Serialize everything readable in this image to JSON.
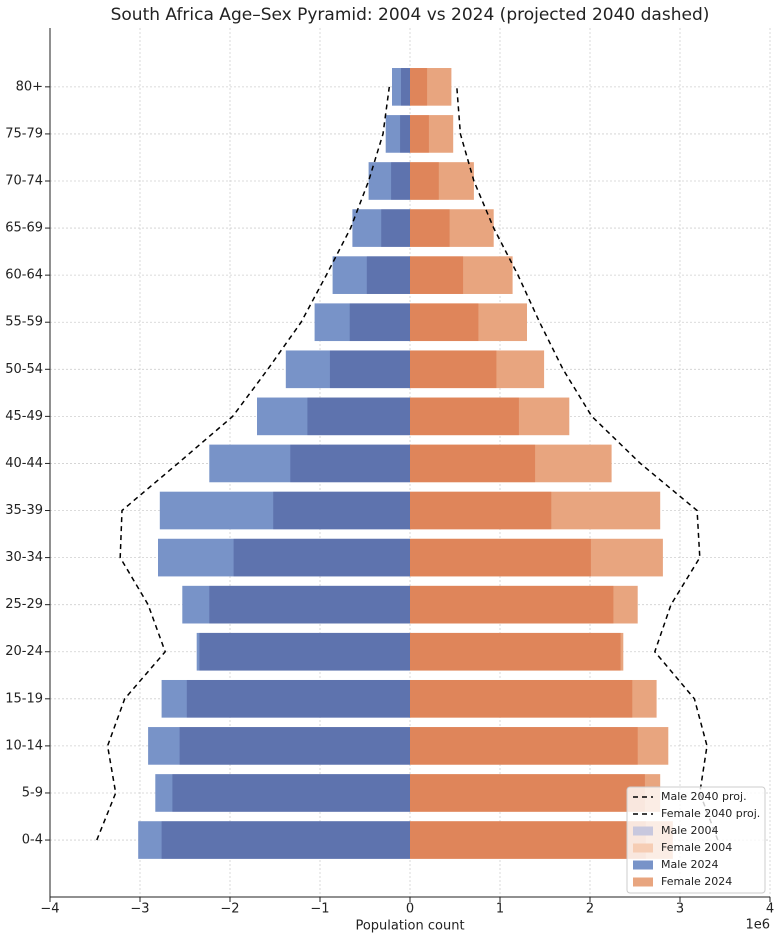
{
  "chart_data": {
    "type": "bar",
    "orientation": "horizontal",
    "title": "South Africa Age–Sex Pyramid: 2004 vs 2024 (projected 2040 dashed)",
    "x_label": "Population count",
    "x_offset_label": "1e6",
    "categories": [
      "0-4",
      "5-9",
      "10-14",
      "15-19",
      "20-24",
      "25-29",
      "30-34",
      "35-39",
      "40-44",
      "45-49",
      "50-54",
      "55-59",
      "60-64",
      "65-69",
      "70-74",
      "75-79",
      "80+"
    ],
    "xlim": [
      -4,
      4
    ],
    "xticks": [
      {
        "value": -4,
        "label": "−4"
      },
      {
        "value": -3,
        "label": "−3"
      },
      {
        "value": -2,
        "label": "−2"
      },
      {
        "value": -1,
        "label": "−1"
      },
      0,
      1,
      2,
      3,
      4
    ],
    "grid": true,
    "legend": "lower right",
    "series": [
      {
        "name": "Male 2040 proj.",
        "type": "line",
        "style": "dashed",
        "color": "#000000",
        "values": [
          -3.48,
          -3.27,
          -3.36,
          -3.17,
          -2.72,
          -2.91,
          -3.22,
          -3.2,
          -2.58,
          -1.97,
          -1.58,
          -1.21,
          -0.93,
          -0.66,
          -0.46,
          -0.3,
          -0.23
        ]
      },
      {
        "name": "Female 2040 proj.",
        "type": "line",
        "style": "dashed",
        "color": "#000000",
        "values": [
          3.42,
          3.22,
          3.3,
          3.16,
          2.72,
          2.9,
          3.22,
          3.19,
          2.56,
          2.02,
          1.7,
          1.44,
          1.2,
          0.93,
          0.71,
          0.56,
          0.52
        ]
      },
      {
        "name": "Male 2004",
        "type": "bar",
        "color": "#c8c8de",
        "values": [
          -2.76,
          -2.64,
          -2.56,
          -2.48,
          -2.34,
          -2.23,
          -1.96,
          -1.52,
          -1.33,
          -1.14,
          -0.89,
          -0.67,
          -0.48,
          -0.32,
          -0.21,
          -0.11,
          -0.1
        ]
      },
      {
        "name": "Female 2004",
        "type": "bar",
        "color": "#f6cdb4",
        "values": [
          2.62,
          2.61,
          2.53,
          2.47,
          2.34,
          2.26,
          2.01,
          1.57,
          1.39,
          1.21,
          0.96,
          0.76,
          0.59,
          0.44,
          0.32,
          0.21,
          0.19
        ]
      },
      {
        "name": "Male 2024",
        "type": "bar",
        "color": "#7893c8",
        "values": [
          -3.02,
          -2.83,
          -2.91,
          -2.76,
          -2.37,
          -2.53,
          -2.8,
          -2.78,
          -2.23,
          -1.7,
          -1.38,
          -1.06,
          -0.86,
          -0.64,
          -0.46,
          -0.27,
          -0.2
        ]
      },
      {
        "name": "Female 2024",
        "type": "bar",
        "color": "#e8a57f",
        "values": [
          2.92,
          2.78,
          2.87,
          2.74,
          2.37,
          2.53,
          2.81,
          2.78,
          2.24,
          1.77,
          1.49,
          1.3,
          1.14,
          0.93,
          0.71,
          0.48,
          0.46
        ]
      }
    ]
  }
}
